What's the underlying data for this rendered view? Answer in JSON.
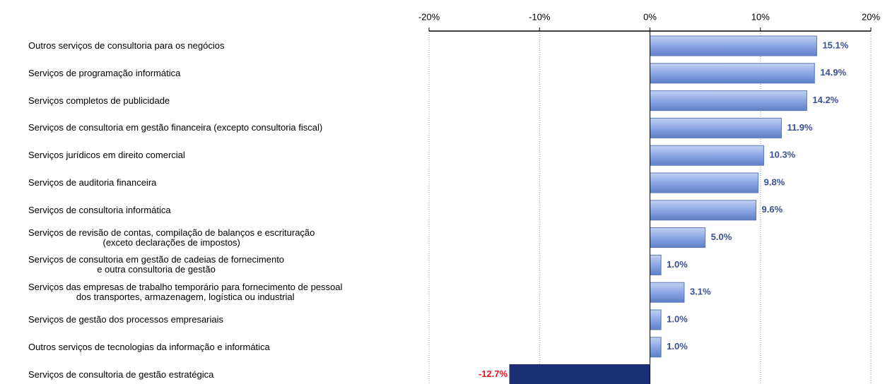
{
  "chart_data": {
    "type": "hbar",
    "categories": [
      "Outros serviços de consultoria para os negócios",
      "Serviços de programação informática",
      "Serviços completos de publicidade",
      "Serviços de consultoria em gestão financeira (excepto consultoria fiscal)",
      "Serviços jurídicos em direito comercial",
      "Serviços de auditoria financeira",
      "Serviços de consultoria informática",
      "Serviços de revisão de contas, compilação de balanços e escrituração\n(exceto declarações de impostos)",
      "Serviços de consultoria em gestão de cadeias de fornecimento\ne outra consultoria de gestão",
      "Serviços das empresas de trabalho temporário para fornecimento de pessoal\ndos transportes, armazenagem, logística ou industrial",
      "Serviços de gestão dos processos empresariais",
      "Outros serviços de tecnologias da informação e informática",
      "Serviços de consultoria de gestão estratégica"
    ],
    "values": [
      15.1,
      14.9,
      14.2,
      11.9,
      10.3,
      9.8,
      9.6,
      5.0,
      1.0,
      3.1,
      1.0,
      1.0,
      -12.7
    ],
    "value_labels": [
      "15.1%",
      "14.9%",
      "14.2%",
      "11.9%",
      "10.3%",
      "9.8%",
      "9.6%",
      "5.0%",
      "1.0%",
      "3.1%",
      "1.0%",
      "1.0%",
      "-12.7%"
    ],
    "color": "#8aa6e4",
    "negative_color": "#1b2f78",
    "label_color": "#3b5193",
    "negative_label_color": "#e8141c",
    "xlim": [
      -20,
      20
    ],
    "xticks": [
      {
        "value": -20,
        "label": "-20%"
      },
      {
        "value": -10,
        "label": "-10%"
      },
      {
        "value": 0,
        "label": "0%"
      },
      {
        "value": 10,
        "label": "10%"
      },
      {
        "value": 20,
        "label": "20%"
      }
    ],
    "grid": true
  }
}
